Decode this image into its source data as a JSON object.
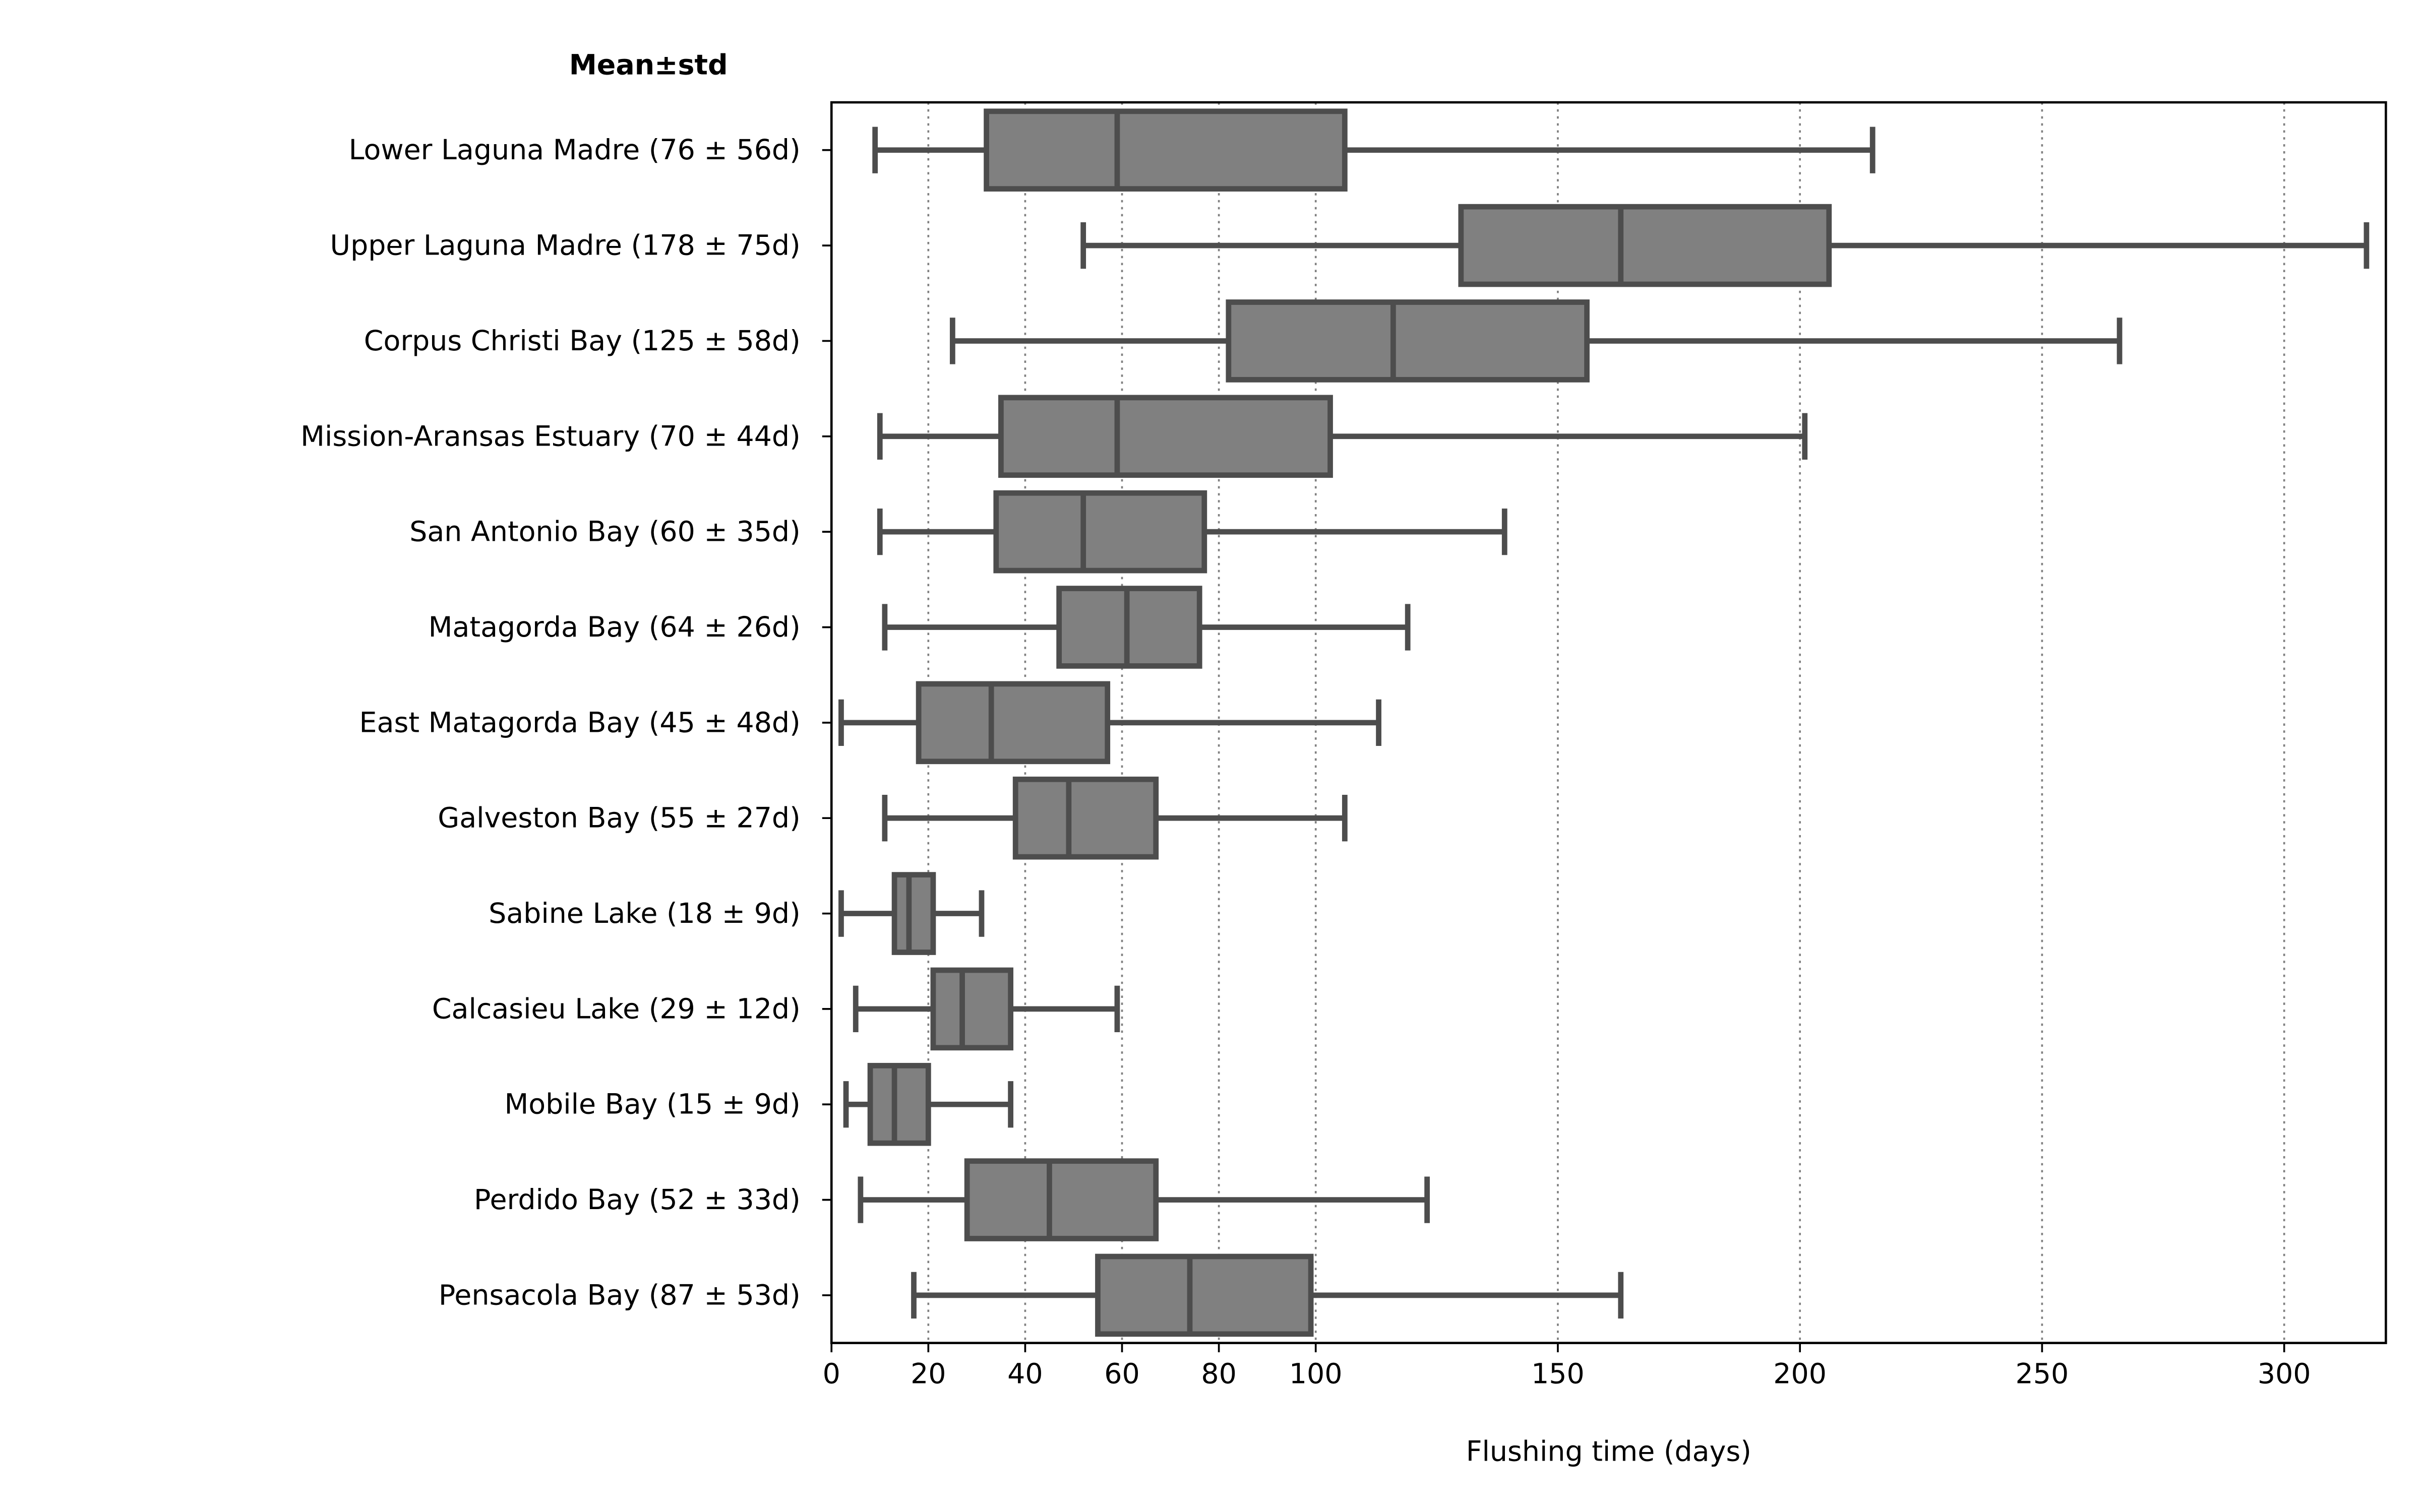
{
  "chart_data": {
    "type": "boxplot",
    "orientation": "horizontal",
    "title": "Mean±std",
    "xlabel": "Flushing time (days)",
    "ylabel": "",
    "xlim": [
      0,
      321
    ],
    "xticks": [
      0,
      20,
      40,
      60,
      80,
      100,
      150,
      200,
      250,
      300
    ],
    "grid": "vertical dotted at x ticks",
    "colors": {
      "box_fill": "#808080",
      "box_edge": "#4d4d4d",
      "grid": "#808080"
    },
    "categories": [
      {
        "label": "Lower Laguna Madre (76 ± 56d)",
        "whislo": 9,
        "q1": 32,
        "med": 59,
        "q3": 106,
        "whishi": 215
      },
      {
        "label": "Upper Laguna Madre (178 ± 75d)",
        "whislo": 52,
        "q1": 130,
        "med": 163,
        "q3": 206,
        "whishi": 317
      },
      {
        "label": "Corpus Christi Bay (125 ± 58d)",
        "whislo": 25,
        "q1": 82,
        "med": 116,
        "q3": 156,
        "whishi": 266
      },
      {
        "label": "Mission-Aransas Estuary (70 ± 44d)",
        "whislo": 10,
        "q1": 35,
        "med": 59,
        "q3": 103,
        "whishi": 201
      },
      {
        "label": "San Antonio Bay (60 ± 35d)",
        "whislo": 10,
        "q1": 34,
        "med": 52,
        "q3": 77,
        "whishi": 139
      },
      {
        "label": "Matagorda Bay (64 ± 26d)",
        "whislo": 11,
        "q1": 47,
        "med": 61,
        "q3": 76,
        "whishi": 119
      },
      {
        "label": "East Matagorda Bay (45 ± 48d)",
        "whislo": 2,
        "q1": 18,
        "med": 33,
        "q3": 57,
        "whishi": 113
      },
      {
        "label": "Galveston Bay (55 ± 27d)",
        "whislo": 11,
        "q1": 38,
        "med": 49,
        "q3": 67,
        "whishi": 106
      },
      {
        "label": "Sabine Lake (18 ± 9d)",
        "whislo": 2,
        "q1": 13,
        "med": 16,
        "q3": 21,
        "whishi": 31
      },
      {
        "label": "Calcasieu Lake (29 ± 12d)",
        "whislo": 5,
        "q1": 21,
        "med": 27,
        "q3": 37,
        "whishi": 59
      },
      {
        "label": "Mobile Bay (15 ± 9d)",
        "whislo": 3,
        "q1": 8,
        "med": 13,
        "q3": 20,
        "whishi": 37
      },
      {
        "label": "Perdido Bay (52 ± 33d)",
        "whislo": 6,
        "q1": 28,
        "med": 45,
        "q3": 67,
        "whishi": 123
      },
      {
        "label": "Pensacola Bay (87 ± 53d)",
        "whislo": 17,
        "q1": 55,
        "med": 74,
        "q3": 99,
        "whishi": 163
      }
    ]
  }
}
